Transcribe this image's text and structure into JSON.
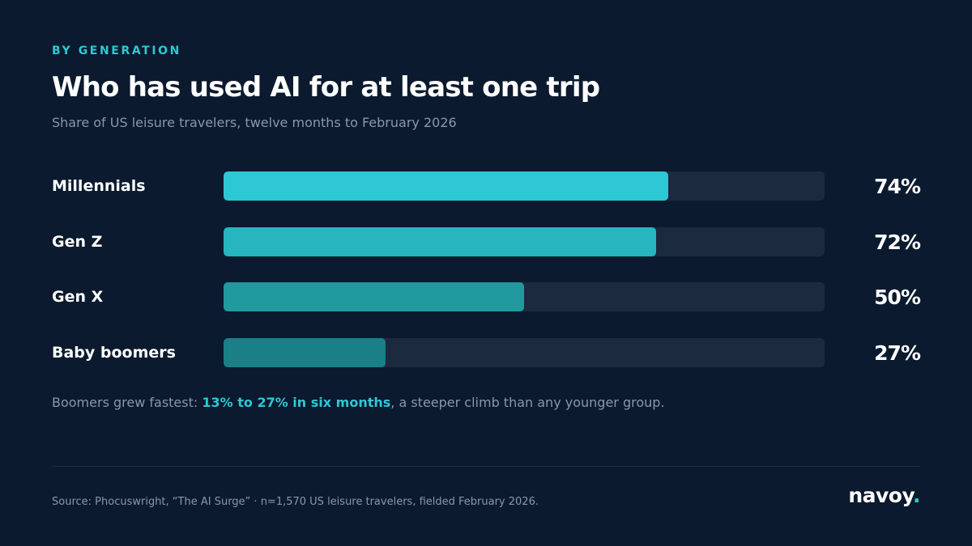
{
  "header": {
    "kicker": "BY GENERATION",
    "title": "Who has used AI for at least one trip",
    "subtitle": "Share of US leisure travelers, twelve months to February 2026"
  },
  "chart_data": {
    "type": "bar",
    "orientation": "horizontal",
    "categories": [
      "Millennials",
      "Gen Z",
      "Gen X",
      "Baby boomers"
    ],
    "values": [
      74,
      72,
      50,
      27
    ],
    "value_labels": [
      "74%",
      "72%",
      "50%",
      "27%"
    ],
    "xlim": [
      0,
      100
    ],
    "unit": "%",
    "grid": false,
    "colors": [
      "#2ec8d4",
      "#27b5bf",
      "#20999f",
      "#1a7f87"
    ],
    "track_color": "#1b2a3e"
  },
  "note": {
    "prefix": "Boomers grew fastest: ",
    "highlight": "13% to 27% in six months",
    "suffix": ", a steeper climb than any younger group."
  },
  "footer": {
    "source": "Source: Phocuswright, “The AI Surge” · n=1,570 US leisure travelers, fielded February 2026.",
    "brand": "navoy",
    "brand_dot": "."
  },
  "colors": {
    "background": "#0b1a2e",
    "accent": "#2ec8d4",
    "muted_text": "#8b97a8"
  }
}
